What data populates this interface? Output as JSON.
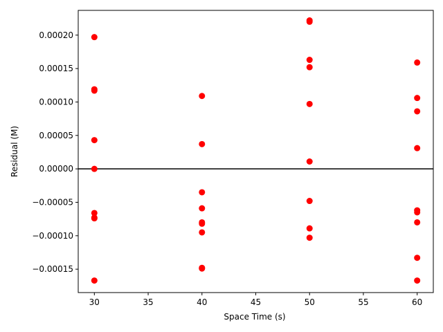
{
  "chart_data": {
    "type": "scatter",
    "xlabel": "Space Time (s)",
    "ylabel": "Residual (M)",
    "xlim": [
      28.5,
      61.5
    ],
    "ylim": [
      -0.000185,
      0.000237
    ],
    "xticks": [
      30,
      35,
      40,
      45,
      50,
      55,
      60
    ],
    "xtick_labels": [
      "30",
      "35",
      "40",
      "45",
      "50",
      "55",
      "60"
    ],
    "yticks": [
      -0.00015,
      -0.0001,
      -5e-05,
      0,
      5e-05,
      0.0001,
      0.00015,
      0.0002
    ],
    "ytick_labels": [
      "−0.00015",
      "−0.00010",
      "−0.00005",
      "0.00000",
      "0.00005",
      "0.00010",
      "0.00015",
      "0.00020"
    ],
    "reference_line": 0,
    "grid": false,
    "marker_color": "#ff0000",
    "line_color": "#000000",
    "points": [
      {
        "x": 30,
        "y": 0.000197
      },
      {
        "x": 30,
        "y": 0.000119
      },
      {
        "x": 30,
        "y": 0.000117
      },
      {
        "x": 30,
        "y": 4.3e-05
      },
      {
        "x": 30,
        "y": 0.0
      },
      {
        "x": 30,
        "y": -6.6e-05
      },
      {
        "x": 30,
        "y": -7.3e-05
      },
      {
        "x": 30,
        "y": -7.4e-05
      },
      {
        "x": 30,
        "y": -0.000167
      },
      {
        "x": 40,
        "y": 0.000109
      },
      {
        "x": 40,
        "y": 3.7e-05
      },
      {
        "x": 40,
        "y": -3.5e-05
      },
      {
        "x": 40,
        "y": -5.9e-05
      },
      {
        "x": 40,
        "y": -8e-05
      },
      {
        "x": 40,
        "y": -8.2e-05
      },
      {
        "x": 40,
        "y": -9.5e-05
      },
      {
        "x": 40,
        "y": -0.000148
      },
      {
        "x": 40,
        "y": -0.000149
      },
      {
        "x": 50,
        "y": 0.000222
      },
      {
        "x": 50,
        "y": 0.00022
      },
      {
        "x": 50,
        "y": 0.000163
      },
      {
        "x": 50,
        "y": 0.000152
      },
      {
        "x": 50,
        "y": 9.7e-05
      },
      {
        "x": 50,
        "y": 1.1e-05
      },
      {
        "x": 50,
        "y": -4.8e-05
      },
      {
        "x": 50,
        "y": -8.9e-05
      },
      {
        "x": 50,
        "y": -0.000103
      },
      {
        "x": 60,
        "y": 0.000159
      },
      {
        "x": 60,
        "y": 0.000106
      },
      {
        "x": 60,
        "y": 8.6e-05
      },
      {
        "x": 60,
        "y": 3.1e-05
      },
      {
        "x": 60,
        "y": -6.2e-05
      },
      {
        "x": 60,
        "y": -6.5e-05
      },
      {
        "x": 60,
        "y": -8e-05
      },
      {
        "x": 60,
        "y": -0.000133
      },
      {
        "x": 60,
        "y": -0.000167
      }
    ]
  }
}
